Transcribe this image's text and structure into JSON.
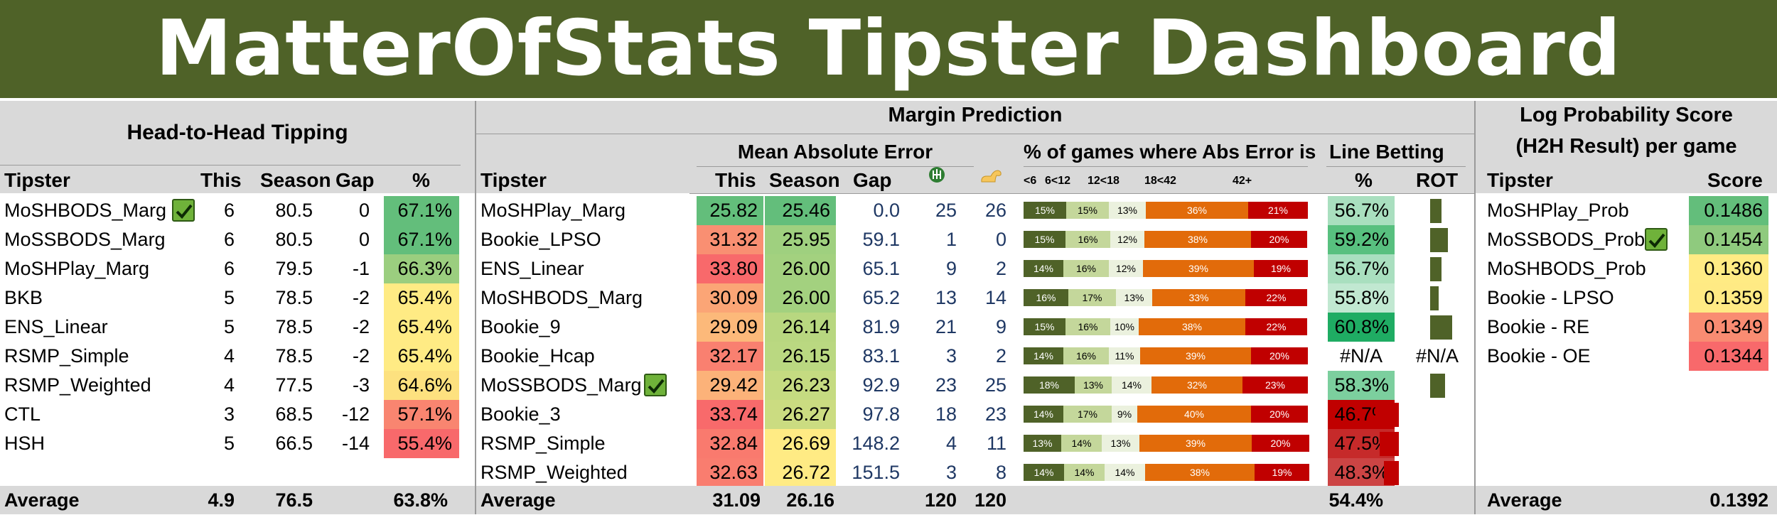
{
  "title": "MatterOfStats Tipster Dashboard",
  "h2h": {
    "section_title": "Head-to-Head Tipping",
    "columns": [
      "Tipster",
      "This",
      "Season",
      "Gap",
      "%"
    ],
    "rows": [
      {
        "tipster": "MoSHBODS_Marg",
        "check": true,
        "this": "6",
        "season": "80.5",
        "gap": "0",
        "pct": "67.1%",
        "pct_color": "#63be7b"
      },
      {
        "tipster": "MoSSBODS_Marg",
        "check": false,
        "this": "6",
        "season": "80.5",
        "gap": "0",
        "pct": "67.1%",
        "pct_color": "#63be7b"
      },
      {
        "tipster": "MoSHPlay_Marg",
        "check": false,
        "this": "6",
        "season": "79.5",
        "gap": "-1",
        "pct": "66.3%",
        "pct_color": "#9bce7f"
      },
      {
        "tipster": "BKB",
        "check": false,
        "this": "5",
        "season": "78.5",
        "gap": "-2",
        "pct": "65.4%",
        "pct_color": "#ffeb84"
      },
      {
        "tipster": "ENS_Linear",
        "check": false,
        "this": "5",
        "season": "78.5",
        "gap": "-2",
        "pct": "65.4%",
        "pct_color": "#ffeb84"
      },
      {
        "tipster": "RSMP_Simple",
        "check": false,
        "this": "4",
        "season": "78.5",
        "gap": "-2",
        "pct": "65.4%",
        "pct_color": "#ffeb84"
      },
      {
        "tipster": "RSMP_Weighted",
        "check": false,
        "this": "4",
        "season": "77.5",
        "gap": "-3",
        "pct": "64.6%",
        "pct_color": "#fde17f"
      },
      {
        "tipster": "CTL",
        "check": false,
        "this": "3",
        "season": "68.5",
        "gap": "-12",
        "pct": "57.1%",
        "pct_color": "#f98570"
      },
      {
        "tipster": "HSH",
        "check": false,
        "this": "5",
        "season": "66.5",
        "gap": "-14",
        "pct": "55.4%",
        "pct_color": "#f8696b"
      }
    ],
    "average": {
      "label": "Average",
      "this": "4.9",
      "season": "76.5",
      "pct": "63.8%"
    }
  },
  "margin": {
    "section_title": "Margin Prediction",
    "mae_title": "Mean Absolute Error",
    "dist_title": "% of games where Abs Error is",
    "line_title": "Line Betting",
    "columns": [
      "Tipster",
      "This",
      "Season",
      "Gap"
    ],
    "dist_columns": [
      "<6",
      "6<12",
      "12<18",
      "18<42",
      "42+"
    ],
    "line_columns": [
      "%",
      "ROT"
    ],
    "icon_home": "goal-post-icon",
    "icon_away": "flexed-arm-icon",
    "rows": [
      {
        "tipster": "MoSHPlay_Marg",
        "check": false,
        "this": "25.82",
        "this_color": "#63be7b",
        "season": "25.46",
        "season_color": "#63be7b",
        "gap": "0.0",
        "c1": "25",
        "c2": "26",
        "dist": [
          15,
          15,
          13,
          36,
          21
        ],
        "dist_labels": [
          "15%",
          "15%",
          "13%",
          "36%",
          "21%"
        ],
        "line_pct": "56.7%",
        "line_color": "#a9dfbf",
        "rot": 0.27,
        "rot_neg": false
      },
      {
        "tipster": "Bookie_LPSO",
        "check": false,
        "this": "31.32",
        "this_color": "#f98f72",
        "season": "25.95",
        "season_color": "#9fd07f",
        "gap": "59.1",
        "c1": "1",
        "c2": "0",
        "dist": [
          15,
          16,
          12,
          38,
          20
        ],
        "dist_labels": [
          "15%",
          "16%",
          "12%",
          "38%",
          "20%"
        ],
        "line_pct": "59.2%",
        "line_color": "#58c07f",
        "rot": 0.42,
        "rot_neg": false
      },
      {
        "tipster": "ENS_Linear",
        "check": false,
        "this": "33.80",
        "this_color": "#f8696b",
        "season": "26.00",
        "season_color": "#a3d17f",
        "gap": "65.1",
        "c1": "9",
        "c2": "2",
        "dist": [
          14,
          16,
          12,
          39,
          19
        ],
        "dist_labels": [
          "14%",
          "16%",
          "12%",
          "39%",
          "19%"
        ],
        "line_pct": "56.7%",
        "line_color": "#a9dfbf",
        "rot": 0.27,
        "rot_neg": false
      },
      {
        "tipster": "MoSHBODS_Marg",
        "check": false,
        "this": "30.09",
        "this_color": "#fba576",
        "season": "26.00",
        "season_color": "#a3d17f",
        "gap": "65.2",
        "c1": "13",
        "c2": "14",
        "dist": [
          16,
          17,
          13,
          33,
          22
        ],
        "dist_labels": [
          "16%",
          "17%",
          "13%",
          "33%",
          "22%"
        ],
        "line_pct": "55.8%",
        "line_color": "#c1e8d1",
        "rot": 0.2,
        "rot_neg": false
      },
      {
        "tipster": "Bookie_9",
        "check": false,
        "this": "29.09",
        "this_color": "#fcb97a",
        "season": "26.14",
        "season_color": "#b8d780",
        "gap": "81.9",
        "c1": "21",
        "c2": "9",
        "dist": [
          15,
          16,
          10,
          38,
          22
        ],
        "dist_labels": [
          "15%",
          "16%",
          "10%",
          "38%",
          "22%"
        ],
        "line_pct": "60.8%",
        "line_color": "#1fac63",
        "rot": 0.52,
        "rot_neg": false
      },
      {
        "tipster": "Bookie_Hcap",
        "check": false,
        "this": "32.17",
        "this_color": "#f98070",
        "season": "26.15",
        "season_color": "#bad881",
        "gap": "83.1",
        "c1": "3",
        "c2": "2",
        "dist": [
          14,
          16,
          11,
          39,
          20
        ],
        "dist_labels": [
          "14%",
          "16%",
          "11%",
          "39%",
          "20%"
        ],
        "line_pct": "#N/A",
        "line_color": "",
        "rot": 0,
        "rot_neg": false,
        "rot_text": "#N/A"
      },
      {
        "tipster": "MoSSBODS_Marg",
        "check": true,
        "this": "29.42",
        "this_color": "#fcb279",
        "season": "26.23",
        "season_color": "#c5db81",
        "gap": "92.9",
        "c1": "23",
        "c2": "25",
        "dist": [
          18,
          13,
          14,
          32,
          23
        ],
        "dist_labels": [
          "18%",
          "13%",
          "14%",
          "32%",
          "23%"
        ],
        "line_pct": "58.3%",
        "line_color": "#7ccf9e",
        "rot": 0.35,
        "rot_neg": false
      },
      {
        "tipster": "Bookie_3",
        "check": false,
        "this": "33.74",
        "this_color": "#f86a6b",
        "season": "26.27",
        "season_color": "#cbdc81",
        "gap": "97.8",
        "c1": "18",
        "c2": "23",
        "dist": [
          14,
          17,
          9,
          40,
          20
        ],
        "dist_labels": [
          "14%",
          "17%",
          "9%",
          "40%",
          "20%"
        ],
        "line_pct": "46.7%",
        "line_color": "#c00000",
        "rot": 0.55,
        "rot_neg": true
      },
      {
        "tipster": "RSMP_Simple",
        "check": false,
        "this": "32.84",
        "this_color": "#f97a6e",
        "season": "26.69",
        "season_color": "#ffeb84",
        "gap": "148.2",
        "c1": "4",
        "c2": "11",
        "dist": [
          13,
          14,
          13,
          39,
          20
        ],
        "dist_labels": [
          "13%",
          "14%",
          "13%",
          "39%",
          "20%"
        ],
        "line_pct": "47.5%",
        "line_color": "#c62a2a",
        "rot": 0.45,
        "rot_neg": true
      },
      {
        "tipster": "RSMP_Weighted",
        "check": false,
        "this": "32.63",
        "this_color": "#f97d6f",
        "season": "26.72",
        "season_color": "#ffeb84",
        "gap": "151.5",
        "c1": "3",
        "c2": "8",
        "dist": [
          14,
          14,
          14,
          38,
          19
        ],
        "dist_labels": [
          "14%",
          "14%",
          "14%",
          "38%",
          "19%"
        ],
        "line_pct": "48.3%",
        "line_color": "#cc4444",
        "rot": 0.35,
        "rot_neg": true
      }
    ],
    "average": {
      "label": "Average",
      "this": "31.09",
      "season": "26.16",
      "c1": "120",
      "c2": "120",
      "line_pct": "54.4%"
    },
    "dist_colors": [
      "#4f6228",
      "#c4d79b",
      "#ebf1de",
      "#e26b0a",
      "#c00000"
    ],
    "dist_text_colors": [
      "#ffffff",
      "#000000",
      "#000000",
      "#ffffff",
      "#ffffff"
    ]
  },
  "logprob": {
    "section_title_1": "Log Probability Score",
    "section_title_2": "(H2H Result) per game",
    "columns": [
      "Tipster",
      "Score"
    ],
    "rows": [
      {
        "tipster": "MoSHPlay_Prob",
        "check": false,
        "score": "0.1486",
        "color": "#63be7b"
      },
      {
        "tipster": "MoSSBODS_Prob",
        "check": true,
        "score": "0.1454",
        "color": "#8fca7e"
      },
      {
        "tipster": "MoSHBODS_Prob",
        "check": false,
        "score": "0.1360",
        "color": "#ffeb84"
      },
      {
        "tipster": "Bookie - LPSO",
        "check": false,
        "score": "0.1359",
        "color": "#ffea84"
      },
      {
        "tipster": "Bookie - RE",
        "check": false,
        "score": "0.1349",
        "color": "#f98c72"
      },
      {
        "tipster": "Bookie - OE",
        "check": false,
        "score": "0.1344",
        "color": "#f8696b"
      }
    ],
    "average": {
      "label": "Average",
      "score": "0.1392"
    }
  }
}
